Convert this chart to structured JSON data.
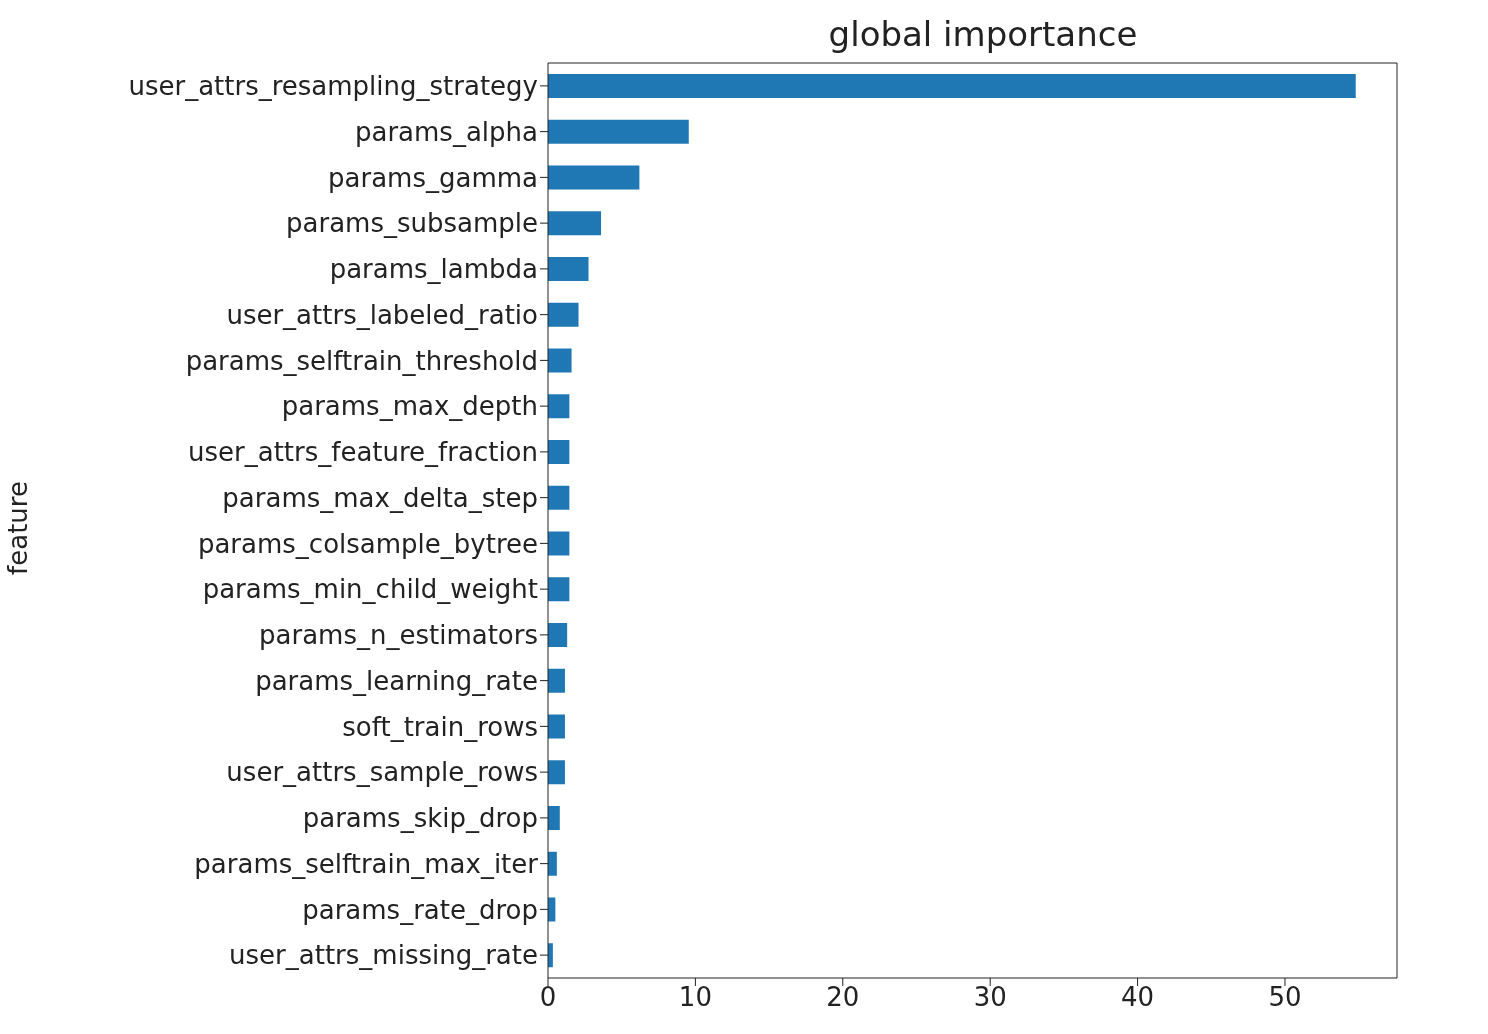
{
  "chart_data": {
    "type": "bar",
    "orientation": "horizontal",
    "title": "global importance",
    "ylabel": "feature",
    "categories": [
      "user_attrs_resampling_strategy",
      "params_alpha",
      "params_gamma",
      "params_subsample",
      "params_lambda",
      "user_attrs_labeled_ratio",
      "params_selftrain_threshold",
      "params_max_depth",
      "user_attrs_feature_fraction",
      "params_max_delta_step",
      "params_colsample_bytree",
      "params_min_child_weight",
      "params_n_estimators",
      "params_learning_rate",
      "soft_train_rows",
      "user_attrs_sample_rows",
      "params_skip_drop",
      "params_selftrain_max_iter",
      "params_rate_drop",
      "user_attrs_missing_rate"
    ],
    "values": [
      54.8,
      9.55,
      6.2,
      3.6,
      2.75,
      2.07,
      1.6,
      1.45,
      1.45,
      1.45,
      1.45,
      1.45,
      1.3,
      1.15,
      1.15,
      1.15,
      0.8,
      0.6,
      0.5,
      0.33
    ],
    "color": "#1f77b4",
    "xlim": [
      0,
      57.6
    ],
    "xticks": [
      0,
      10,
      20,
      30,
      40,
      50
    ],
    "grid": false,
    "legend": false
  }
}
